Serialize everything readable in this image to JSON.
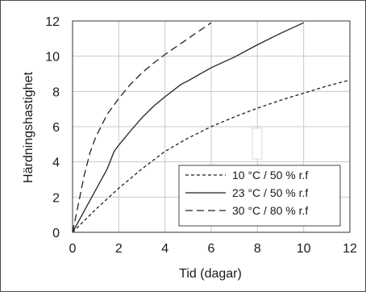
{
  "chart_data": {
    "type": "line",
    "xlabel": "Tid (dagar)",
    "ylabel": "Härdningshastighet",
    "xlim": [
      0,
      12
    ],
    "ylim": [
      0,
      12
    ],
    "xticks": [
      "0",
      "2",
      "4",
      "6",
      "8",
      "10",
      "12"
    ],
    "yticks": [
      "0",
      "2",
      "4",
      "6",
      "8",
      "10",
      "12"
    ],
    "grid": true,
    "legend_position": "bottom-right",
    "series": [
      {
        "name": "10 °C / 50 % r.f",
        "dash": "short-dash",
        "color": "#222222",
        "points": [
          [
            0,
            0
          ],
          [
            0.5,
            0.65
          ],
          [
            1,
            1.3
          ],
          [
            2,
            2.5
          ],
          [
            3,
            3.6
          ],
          [
            4,
            4.6
          ],
          [
            5,
            5.35
          ],
          [
            6,
            6.0
          ],
          [
            7,
            6.55
          ],
          [
            8,
            7.05
          ],
          [
            9,
            7.5
          ],
          [
            10,
            7.9
          ],
          [
            11,
            8.3
          ],
          [
            12,
            8.65
          ]
        ]
      },
      {
        "name": "23 °C / 50 % r.f",
        "dash": "solid",
        "color": "#222222",
        "points": [
          [
            0,
            0
          ],
          [
            0.5,
            1.2
          ],
          [
            1,
            2.4
          ],
          [
            1.5,
            3.6
          ],
          [
            1.8,
            4.6
          ],
          [
            2,
            4.95
          ],
          [
            2.5,
            5.75
          ],
          [
            3,
            6.5
          ],
          [
            3.5,
            7.15
          ],
          [
            4,
            7.7
          ],
          [
            4.7,
            8.4
          ],
          [
            5,
            8.6
          ],
          [
            6,
            9.35
          ],
          [
            7,
            9.95
          ],
          [
            8,
            10.65
          ],
          [
            9,
            11.3
          ],
          [
            10,
            11.9
          ]
        ]
      },
      {
        "name": "30 °C / 80 % r.f",
        "dash": "long-dash",
        "color": "#222222",
        "points": [
          [
            0,
            0
          ],
          [
            0.25,
            1.6
          ],
          [
            0.5,
            3.2
          ],
          [
            0.75,
            4.5
          ],
          [
            1,
            5.4
          ],
          [
            1.5,
            6.7
          ],
          [
            2,
            7.6
          ],
          [
            2.5,
            8.4
          ],
          [
            3,
            9.05
          ],
          [
            3.5,
            9.6
          ],
          [
            4,
            10.1
          ],
          [
            5,
            11.0
          ],
          [
            6,
            11.9
          ]
        ]
      }
    ]
  }
}
